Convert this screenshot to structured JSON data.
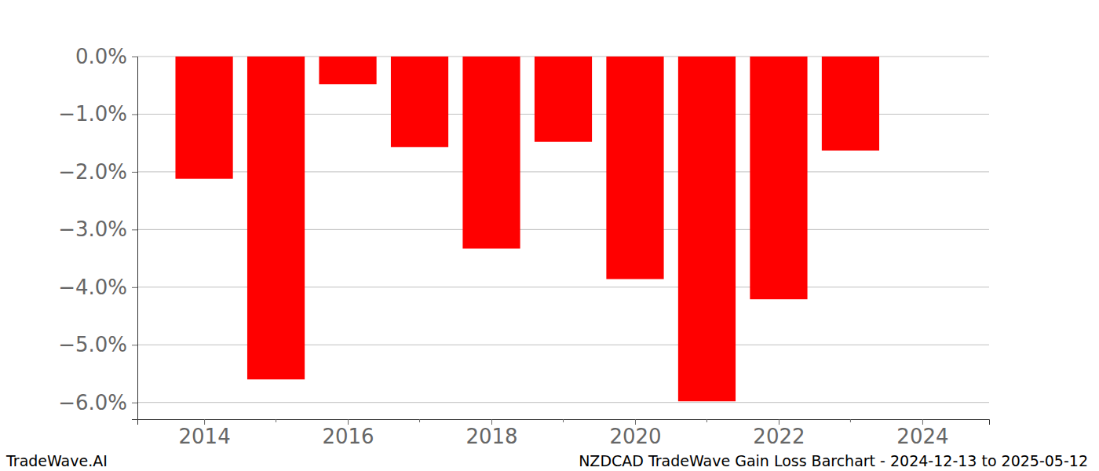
{
  "chart_data": {
    "type": "bar",
    "title": "NZDCAD TradeWave Gain Loss Barchart - 2024-12-13 to 2025-05-12",
    "annotations": [
      "TradeWave.AI"
    ],
    "x": [
      2014,
      2015,
      2016,
      2017,
      2018,
      2019,
      2020,
      2021,
      2022,
      2023
    ],
    "values": [
      -2.12,
      -5.6,
      -0.48,
      -1.57,
      -3.33,
      -1.48,
      -3.86,
      -5.98,
      -4.21,
      -1.63
    ],
    "color": "#ff0000",
    "xlim": [
      2013.07,
      2024.93
    ],
    "xticks": [
      2014,
      2016,
      2018,
      2020,
      2022,
      2024
    ],
    "ylim": [
      -6.29,
      0
    ],
    "yticks": [
      {
        "value": 0,
        "label": "0.0%"
      },
      {
        "value": -1,
        "label": "−1.0%"
      },
      {
        "value": -2,
        "label": "−2.0%"
      },
      {
        "value": -3,
        "label": "−3.0%"
      },
      {
        "value": -4,
        "label": "−4.0%"
      },
      {
        "value": -5,
        "label": "−5.0%"
      },
      {
        "value": -6,
        "label": "−6.0%"
      }
    ],
    "grid": true
  }
}
